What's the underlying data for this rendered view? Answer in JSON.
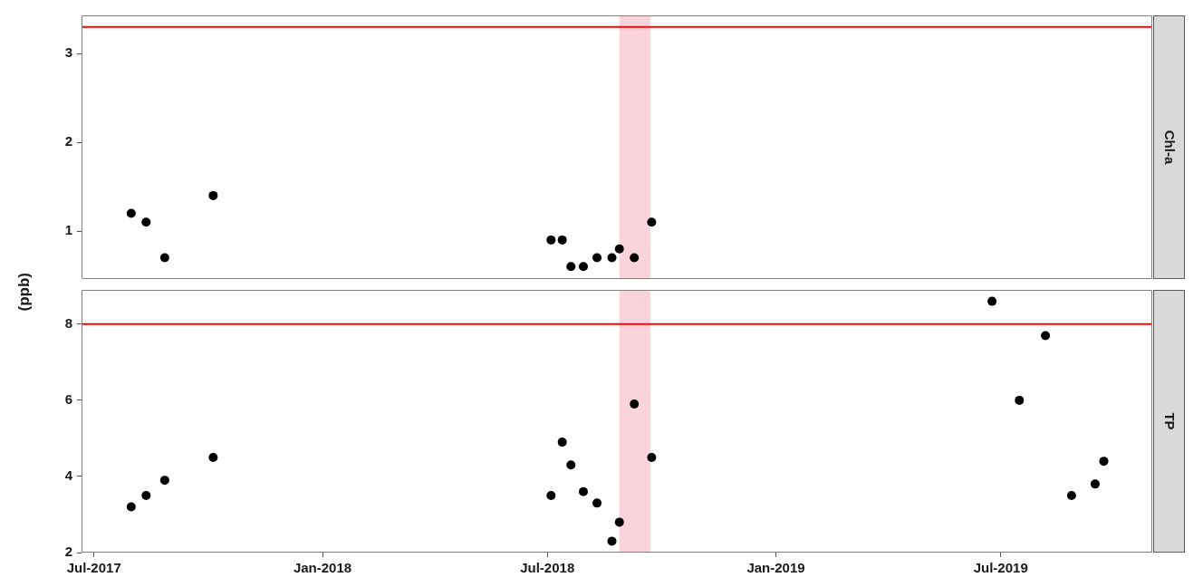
{
  "chart_data": [
    {
      "type": "scatter",
      "y2label": "Chl-a",
      "ylabel": "(ppb)",
      "color": "#000000",
      "marker": "circle",
      "tick_labels": "y",
      "x": [
        "2017-07-31",
        "2017-08-12",
        "2017-08-27",
        "2017-10-05",
        "2018-07-04",
        "2018-07-13",
        "2018-07-20",
        "2018-07-30",
        "2018-08-10",
        "2018-08-22",
        "2018-08-28",
        "2018-09-09",
        "2018-09-23"
      ],
      "values": [
        1.2,
        1.1,
        0.7,
        1.4,
        0.9,
        0.9,
        0.6,
        0.6,
        0.7,
        0.7,
        0.8,
        0.7,
        1.1
      ],
      "xlim": [
        "2017-06-21",
        "2019-10-31"
      ],
      "ylim": [
        0.46,
        3.43
      ],
      "yticks": [
        1,
        2,
        3
      ],
      "ref_lines": [
        {
          "axis": "y",
          "value": 3.3,
          "color": "#ff0000"
        }
      ],
      "bands": [
        {
          "axis": "x",
          "from": "2018-08-28",
          "to": "2018-09-22",
          "color": "#fbd3dc"
        }
      ]
    },
    {
      "type": "scatter",
      "y2label": "TP",
      "color": "#000000",
      "marker": "circle",
      "x": [
        "2017-07-31",
        "2017-08-12",
        "2017-08-27",
        "2017-10-05",
        "2018-07-04",
        "2018-07-13",
        "2018-07-20",
        "2018-07-30",
        "2018-08-10",
        "2018-08-22",
        "2018-08-28",
        "2018-09-09",
        "2018-09-23",
        "2019-06-24",
        "2019-07-16",
        "2019-08-06",
        "2019-08-27",
        "2019-09-15",
        "2019-09-22"
      ],
      "values": [
        3.2,
        3.5,
        3.9,
        4.5,
        3.5,
        4.9,
        4.3,
        3.6,
        3.3,
        2.3,
        2.8,
        5.9,
        4.5,
        8.6,
        6.0,
        7.7,
        3.5,
        3.8,
        4.4
      ],
      "xlim": [
        "2017-06-21",
        "2019-10-31"
      ],
      "xticks": [
        {
          "value": "2017-07-01",
          "label": "Jul-2017"
        },
        {
          "value": "2018-01-01",
          "label": "Jan-2018"
        },
        {
          "value": "2018-07-01",
          "label": "Jul-2018"
        },
        {
          "value": "2019-01-01",
          "label": "Jan-2019"
        },
        {
          "value": "2019-07-01",
          "label": "Jul-2019"
        }
      ],
      "ylim": [
        2,
        8.9
      ],
      "yticks": [
        2,
        4,
        6,
        8
      ],
      "ref_lines": [
        {
          "axis": "y",
          "value": 8,
          "color": "#ff0000"
        }
      ],
      "bands": [
        {
          "axis": "x",
          "from": "2018-08-28",
          "to": "2018-09-22",
          "color": "#fbd3dc"
        }
      ]
    }
  ]
}
